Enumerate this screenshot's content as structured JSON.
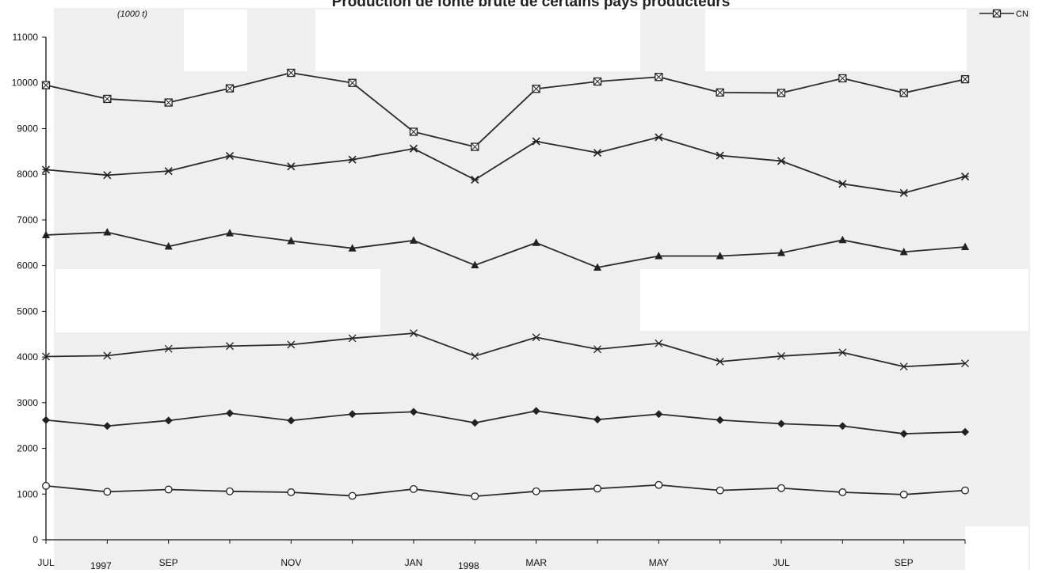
{
  "chart_data": {
    "type": "line",
    "title": "Production de fonte brute de certains pays producteurs",
    "unit_label": "(1000 t)",
    "xlabel": "",
    "ylabel": "",
    "ylim": [
      0,
      11000
    ],
    "y_ticks": [
      0,
      1000,
      2000,
      3000,
      4000,
      5000,
      6000,
      7000,
      8000,
      9000,
      10000,
      11000
    ],
    "month_labels": [
      "JUL",
      "",
      "SEP",
      "",
      "NOV",
      "",
      "JAN",
      "",
      "MAR",
      "",
      "MAY",
      "",
      "JUL",
      "",
      "SEP",
      ""
    ],
    "year_labels": [
      {
        "index": 1,
        "text": "1997"
      },
      {
        "index": 7,
        "text": "1998"
      }
    ],
    "grid": false,
    "legend_position": "top-right",
    "series": [
      {
        "name": "CN",
        "marker": "square-x",
        "values": [
          9950,
          9650,
          9570,
          9880,
          10220,
          10000,
          8930,
          8600,
          9870,
          10030,
          10130,
          9790,
          9780,
          10100,
          9780,
          10080
        ]
      },
      {
        "name": "",
        "marker": "star",
        "values": [
          8100,
          7980,
          8070,
          8400,
          8170,
          8320,
          8560,
          7880,
          8720,
          8470,
          8810,
          8410,
          8290,
          7790,
          7590,
          7950
        ]
      },
      {
        "name": "",
        "marker": "triangle",
        "values": [
          6670,
          6730,
          6420,
          6710,
          6540,
          6380,
          6550,
          6010,
          6500,
          5960,
          6210,
          6210,
          6280,
          6560,
          6300,
          6410
        ]
      },
      {
        "name": "",
        "marker": "x",
        "values": [
          4010,
          4030,
          4180,
          4240,
          4270,
          4410,
          4520,
          4020,
          4430,
          4170,
          4300,
          3900,
          4020,
          4100,
          3790,
          3860
        ]
      },
      {
        "name": "",
        "marker": "diamond",
        "values": [
          2620,
          2490,
          2610,
          2770,
          2610,
          2750,
          2800,
          2560,
          2820,
          2630,
          2750,
          2620,
          2540,
          2490,
          2320,
          2360
        ]
      },
      {
        "name": "",
        "marker": "circle",
        "values": [
          1180,
          1050,
          1100,
          1060,
          1040,
          960,
          1110,
          950,
          1060,
          1120,
          1200,
          1080,
          1130,
          1040,
          990,
          1080
        ]
      }
    ],
    "legend_entries": [
      "CN"
    ]
  }
}
